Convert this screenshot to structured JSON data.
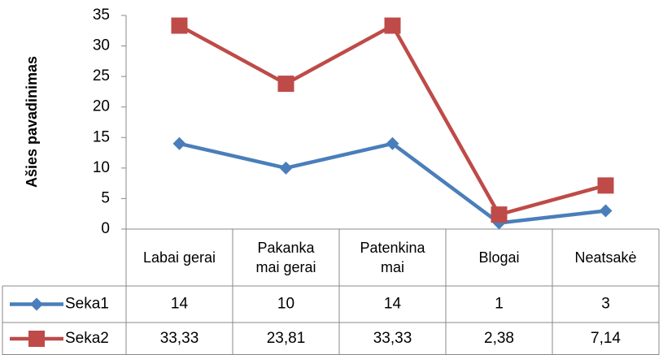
{
  "chart_data": {
    "type": "line",
    "y_axis_label": "Ašies pavadinimas",
    "categories": [
      "Labai gerai",
      "Pakanka mai gerai",
      "Patenkina mai",
      "Blogai",
      "Neatsakė"
    ],
    "series": [
      {
        "name": "Seka1",
        "color": "#4a7ebb",
        "marker": "diamond",
        "values": [
          14,
          10,
          14,
          1,
          3
        ]
      },
      {
        "name": "Seka2",
        "color": "#be4b48",
        "marker": "square",
        "values": [
          33.33,
          23.81,
          33.33,
          2.38,
          7.14
        ],
        "value_labels": [
          "33,33",
          "23,81",
          "33,33",
          "2,38",
          "7,14"
        ]
      }
    ],
    "ylim": [
      0,
      35
    ],
    "yticks": [
      0,
      5,
      10,
      15,
      20,
      25,
      30,
      35
    ],
    "grid": false
  }
}
